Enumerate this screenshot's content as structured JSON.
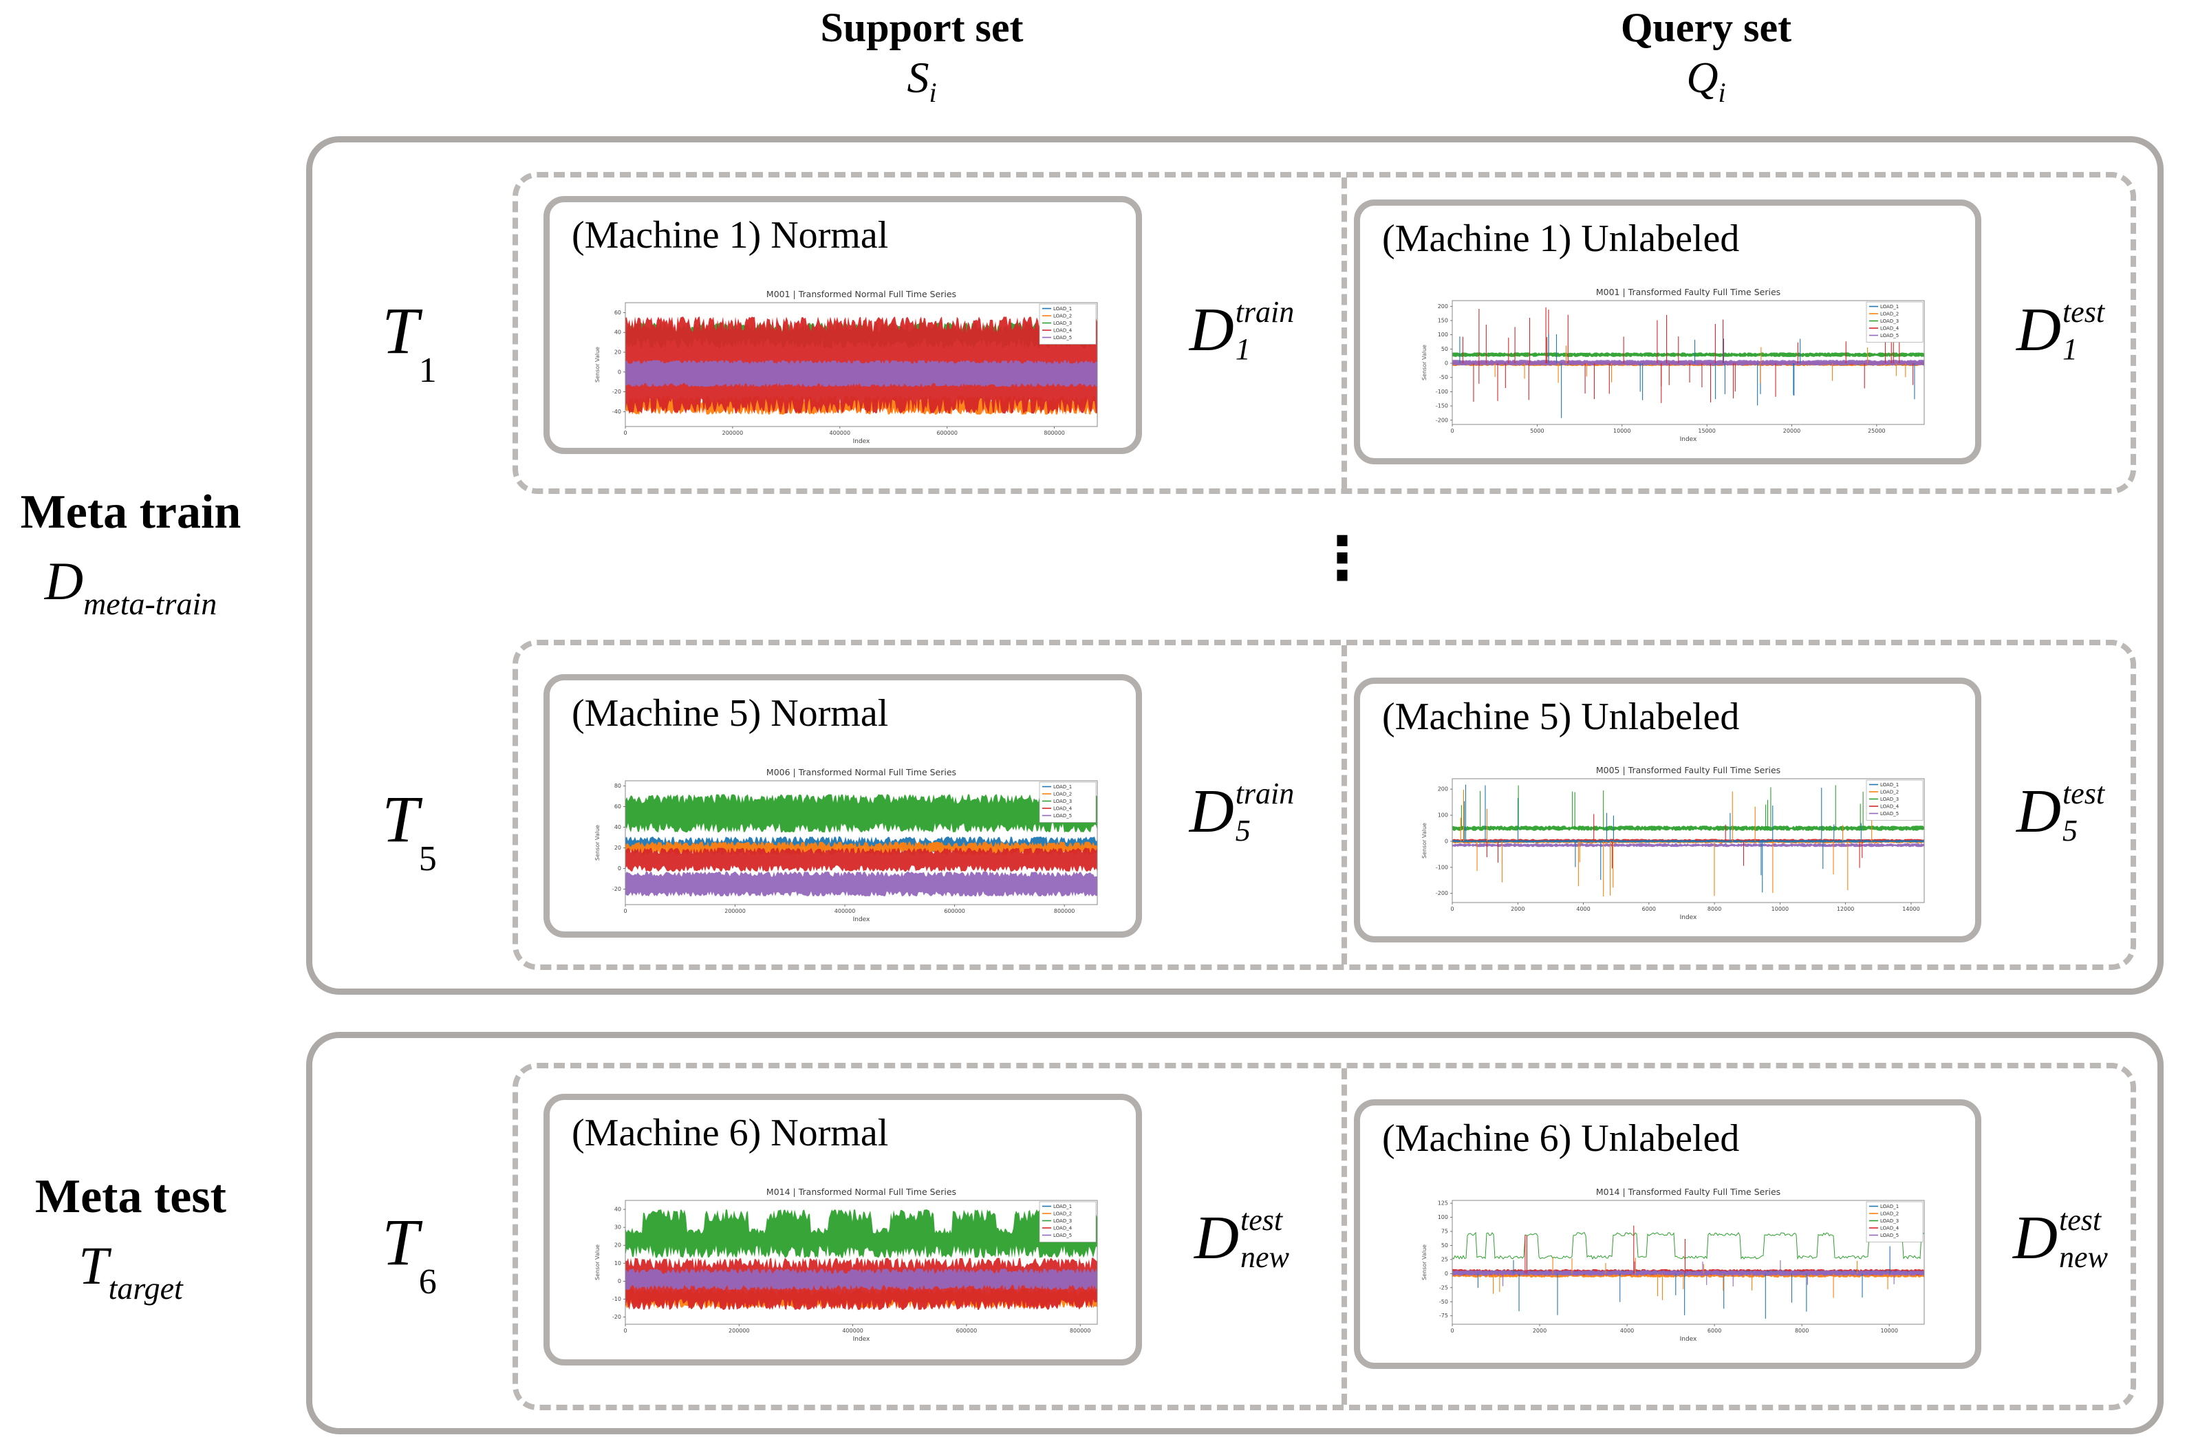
{
  "columns": {
    "support": {
      "title": "Support set",
      "symbol": "S",
      "symbol_sub": "i"
    },
    "query": {
      "title": "Query set",
      "symbol": "Q",
      "symbol_sub": "i"
    }
  },
  "meta_train": {
    "label": "Meta train",
    "symbol": "D",
    "symbol_sub": "meta-train"
  },
  "meta_test": {
    "label": "Meta test",
    "symbol": "T",
    "symbol_sub": "target"
  },
  "ellipsis": "⋮",
  "rows": [
    {
      "task_symbol": "T",
      "task_sub": "1",
      "support": {
        "title": "(Machine 1) Normal",
        "d_letter": "D",
        "d_sup": "train",
        "d_sub": "1"
      },
      "query": {
        "title": "(Machine 1) Unlabeled",
        "d_letter": "D",
        "d_sup": "test",
        "d_sub": "1"
      }
    },
    {
      "task_symbol": "T",
      "task_sub": "5",
      "support": {
        "title": "(Machine 5) Normal",
        "d_letter": "D",
        "d_sup": "train",
        "d_sub": "5"
      },
      "query": {
        "title": "(Machine 5) Unlabeled",
        "d_letter": "D",
        "d_sup": "test",
        "d_sub": "5"
      }
    },
    {
      "task_symbol": "T",
      "task_sub": "6",
      "support": {
        "title": "(Machine 6) Normal",
        "d_letter": "D",
        "d_sup": "test",
        "d_sub": "new"
      },
      "query": {
        "title": "(Machine 6) Unlabeled",
        "d_letter": "D",
        "d_sup": "test",
        "d_sub": "new"
      }
    }
  ],
  "chart_data": [
    {
      "type": "line",
      "panel": "meta-train support machine 1",
      "title": "M001 | Transformed Normal Full Time Series",
      "xlabel": "Index",
      "ylabel": "Sensor Value",
      "xlim": [
        0,
        880000
      ],
      "ylim": [
        -55,
        70
      ],
      "xticks": [
        0,
        200000,
        400000,
        600000,
        800000
      ],
      "yticks": [
        -40,
        -20,
        0,
        20,
        40,
        60
      ],
      "legend": [
        "LOAD_1",
        "LOAD_2",
        "LOAD_3",
        "LOAD_4",
        "LOAD_5"
      ],
      "legend_colors": [
        "#1f77b4",
        "#ff7f0e",
        "#2ca02c",
        "#d62728",
        "#9467bd"
      ],
      "series": [
        {
          "name": "LOAD_3",
          "color": "#2ca02c",
          "type": "band",
          "low": 24,
          "high": 50,
          "jitter": 10
        },
        {
          "name": "LOAD_2",
          "color": "#ff7f0e",
          "type": "band",
          "low": -43,
          "high": -24,
          "jitter": 8
        },
        {
          "name": "LOAD_4",
          "color": "#d62728",
          "type": "band",
          "low": -42,
          "high": 56,
          "jitter": 16
        },
        {
          "name": "LOAD_5",
          "color": "#9467bd",
          "type": "band",
          "low": -15,
          "high": 12,
          "jitter": 4
        }
      ]
    },
    {
      "type": "line",
      "panel": "meta-train query machine 1",
      "title": "M001 | Transformed Faulty Full Time Series",
      "xlabel": "Index",
      "ylabel": "Sensor Value",
      "xlim": [
        0,
        27800
      ],
      "ylim": [
        -215,
        220
      ],
      "xticks": [
        0,
        5000,
        10000,
        15000,
        20000,
        25000
      ],
      "yticks": [
        -200,
        -150,
        -100,
        -50,
        0,
        50,
        100,
        150,
        200
      ],
      "legend": [
        "LOAD_1",
        "LOAD_2",
        "LOAD_3",
        "LOAD_4",
        "LOAD_5"
      ],
      "legend_colors": [
        "#1f77b4",
        "#ff7f0e",
        "#2ca02c",
        "#d62728",
        "#9467bd"
      ],
      "series": [
        {
          "name": "LOAD_3",
          "color": "#2ca02c",
          "type": "band",
          "low": 22,
          "high": 38,
          "jitter": 5
        },
        {
          "name": "LOAD_2",
          "color": "#ff7f0e",
          "type": "band",
          "low": -10,
          "high": 5,
          "jitter": 4
        },
        {
          "name": "LOAD_1",
          "color": "#1f77b4",
          "type": "band",
          "low": -6,
          "high": 6,
          "jitter": 3
        },
        {
          "name": "LOAD_4",
          "color": "#d62728",
          "type": "band",
          "low": -6,
          "high": 7,
          "jitter": 4
        },
        {
          "name": "LOAD_5",
          "color": "#9467bd",
          "type": "band",
          "low": -8,
          "high": 12,
          "jitter": 5
        },
        {
          "name": "LOAD_4",
          "color": "#d62728",
          "type": "spikes",
          "n": 42,
          "base": 0,
          "up_prob": 0.62,
          "up": [
            70,
            205
          ],
          "down": [
            60,
            140
          ]
        },
        {
          "name": "LOAD_1",
          "color": "#1f77b4",
          "type": "spikes",
          "n": 16,
          "base": 0,
          "up_prob": 0.3,
          "up": [
            80,
            107
          ],
          "down": [
            90,
            195
          ]
        },
        {
          "name": "LOAD_2",
          "color": "#ff7f0e",
          "type": "spikes",
          "n": 12,
          "base": 0,
          "up_prob": 0.5,
          "up": [
            40,
            65
          ],
          "down": [
            40,
            70
          ]
        }
      ]
    },
    {
      "type": "line",
      "panel": "meta-train support machine 5",
      "title": "M006 | Transformed Normal Full Time Series",
      "xlabel": "Index",
      "ylabel": "Sensor Value",
      "xlim": [
        0,
        860000
      ],
      "ylim": [
        -35,
        85
      ],
      "xticks": [
        0,
        200000,
        400000,
        600000,
        800000
      ],
      "yticks": [
        -20,
        0,
        20,
        40,
        60,
        80
      ],
      "legend": [
        "LOAD_1",
        "LOAD_2",
        "LOAD_3",
        "LOAD_4",
        "LOAD_5"
      ],
      "legend_colors": [
        "#1f77b4",
        "#ff7f0e",
        "#2ca02c",
        "#d62728",
        "#9467bd"
      ],
      "series": [
        {
          "name": "LOAD_3",
          "color": "#2ca02c",
          "type": "band",
          "low": 35,
          "high": 72,
          "jitter": 9
        },
        {
          "name": "LOAD_1",
          "color": "#1f77b4",
          "type": "band",
          "low": 15,
          "high": 31,
          "jitter": 7
        },
        {
          "name": "LOAD_2",
          "color": "#ff7f0e",
          "type": "band",
          "low": 13,
          "high": 26,
          "jitter": 5
        },
        {
          "name": "LOAD_4",
          "color": "#d62728",
          "type": "band",
          "low": -3,
          "high": 20,
          "jitter": 6
        },
        {
          "name": "LOAD_5",
          "color": "#9467bd",
          "type": "band",
          "low": -27,
          "high": -3,
          "jitter": 5
        }
      ]
    },
    {
      "type": "line",
      "panel": "meta-train query machine 5",
      "title": "M005 | Transformed Faulty Full Time Series",
      "xlabel": "Index",
      "ylabel": "Sensor Value",
      "xlim": [
        0,
        14400
      ],
      "ylim": [
        -235,
        240
      ],
      "xticks": [
        0,
        2000,
        4000,
        6000,
        8000,
        10000,
        12000,
        14000
      ],
      "yticks": [
        -200,
        -100,
        0,
        100,
        200
      ],
      "legend": [
        "LOAD_1",
        "LOAD_2",
        "LOAD_3",
        "LOAD_4",
        "LOAD_5"
      ],
      "legend_colors": [
        "#1f77b4",
        "#ff7f0e",
        "#2ca02c",
        "#d62728",
        "#9467bd"
      ],
      "series": [
        {
          "name": "LOAD_3",
          "color": "#2ca02c",
          "type": "band",
          "low": 40,
          "high": 60,
          "jitter": 7
        },
        {
          "name": "LOAD_2",
          "color": "#ff7f0e",
          "type": "band",
          "low": -8,
          "high": 5,
          "jitter": 4
        },
        {
          "name": "LOAD_4",
          "color": "#d62728",
          "type": "band",
          "low": -2,
          "high": 9,
          "jitter": 4
        },
        {
          "name": "LOAD_1",
          "color": "#1f77b4",
          "type": "band",
          "low": -5,
          "high": 5,
          "jitter": 3
        },
        {
          "name": "LOAD_5",
          "color": "#9467bd",
          "type": "band",
          "low": -22,
          "high": -8,
          "jitter": 5
        },
        {
          "name": "LOAD_1",
          "color": "#1f77b4",
          "type": "spikes",
          "n": 16,
          "base": 0,
          "up_prob": 0.45,
          "up": [
            60,
            225
          ],
          "down": [
            80,
            210
          ],
          "clusters": [
            [
              100,
              2100
            ],
            [
              3600,
              5000
            ],
            [
              7900,
              9900
            ],
            [
              11000,
              13100
            ]
          ]
        },
        {
          "name": "LOAD_2",
          "color": "#ff7f0e",
          "type": "spikes",
          "n": 18,
          "base": 0,
          "up_prob": 0.4,
          "up": [
            60,
            200
          ],
          "down": [
            70,
            215
          ],
          "clusters": [
            [
              100,
              2100
            ],
            [
              3600,
              5000
            ],
            [
              7900,
              9900
            ],
            [
              11000,
              13100
            ]
          ]
        },
        {
          "name": "LOAD_3",
          "color": "#2ca02c",
          "type": "spikes",
          "n": 12,
          "base": 50,
          "up_prob": 0.8,
          "up": [
            80,
            190
          ],
          "down": [
            60,
            120
          ],
          "clusters": [
            [
              100,
              2100
            ],
            [
              3600,
              5000
            ],
            [
              7900,
              9900
            ],
            [
              11000,
              13100
            ]
          ]
        },
        {
          "name": "LOAD_4",
          "color": "#d62728",
          "type": "spikes",
          "n": 8,
          "base": 0,
          "up_prob": 0.5,
          "up": [
            60,
            130
          ],
          "down": [
            60,
            120
          ],
          "clusters": [
            [
              100,
              2100
            ],
            [
              3600,
              5000
            ],
            [
              7900,
              9900
            ],
            [
              11000,
              13100
            ]
          ]
        }
      ]
    },
    {
      "type": "line",
      "panel": "meta-test support machine 6",
      "title": "M014 | Transformed Normal Full Time Series",
      "xlabel": "Index",
      "ylabel": "Sensor Value",
      "xlim": [
        0,
        830000
      ],
      "ylim": [
        -24,
        45
      ],
      "xticks": [
        0,
        200000,
        400000,
        600000,
        800000
      ],
      "yticks": [
        -20,
        -10,
        0,
        10,
        20,
        30,
        40
      ],
      "legend": [
        "LOAD_1",
        "LOAD_2",
        "LOAD_3",
        "LOAD_4",
        "LOAD_5"
      ],
      "legend_colors": [
        "#1f77b4",
        "#ff7f0e",
        "#2ca02c",
        "#d62728",
        "#9467bd"
      ],
      "series": [
        {
          "name": "LOAD_3",
          "color": "#2ca02c",
          "type": "band",
          "low": 13,
          "high": 40,
          "jitter": 7,
          "notch": {
            "p": 45,
            "w": 13,
            "high": 30
          }
        },
        {
          "name": "LOAD_2",
          "color": "#ff7f0e",
          "type": "band",
          "low": -15,
          "high": -4,
          "jitter": 4
        },
        {
          "name": "LOAD_4",
          "color": "#d62728",
          "type": "band",
          "low": -16,
          "high": 13,
          "jitter": 6
        },
        {
          "name": "LOAD_5",
          "color": "#9467bd",
          "type": "band",
          "low": -5,
          "high": 7,
          "jitter": 3
        }
      ]
    },
    {
      "type": "line",
      "panel": "meta-test query machine 6",
      "title": "M014 | Transformed Faulty Full Time Series",
      "xlabel": "Index",
      "ylabel": "Sensor Value",
      "xlim": [
        0,
        10800
      ],
      "ylim": [
        -90,
        130
      ],
      "xticks": [
        0,
        2000,
        4000,
        6000,
        8000,
        10000
      ],
      "yticks": [
        -75,
        -50,
        -25,
        0,
        25,
        50,
        75,
        100,
        125
      ],
      "legend": [
        "LOAD_1",
        "LOAD_2",
        "LOAD_3",
        "LOAD_4",
        "LOAD_5"
      ],
      "legend_colors": [
        "#1f77b4",
        "#ff7f0e",
        "#2ca02c",
        "#d62728",
        "#9467bd"
      ],
      "series": [
        {
          "name": "LOAD_2",
          "color": "#ff7f0e",
          "type": "band",
          "low": -7,
          "high": 4,
          "jitter": 3
        },
        {
          "name": "LOAD_4",
          "color": "#d62728",
          "type": "band",
          "low": -3,
          "high": 8,
          "jitter": 3
        },
        {
          "name": "LOAD_1",
          "color": "#1f77b4",
          "type": "band",
          "low": -2,
          "high": 5,
          "jitter": 2
        },
        {
          "name": "LOAD_5",
          "color": "#9467bd",
          "type": "band",
          "low": -4,
          "high": 6,
          "jitter": 3
        },
        {
          "name": "LOAD_3",
          "color": "#2ca02c",
          "type": "square",
          "low": 29,
          "high": 70,
          "jitter": 3,
          "seg": [
            5,
            25
          ]
        },
        {
          "name": "LOAD_1",
          "color": "#1f77b4",
          "type": "spikes",
          "n": 13,
          "base": 0,
          "up_prob": 0.08,
          "up": [
            20,
            60
          ],
          "down": [
            25,
            82
          ]
        },
        {
          "name": "LOAD_2",
          "color": "#ff7f0e",
          "type": "spikes",
          "n": 15,
          "base": 0,
          "up_prob": 0.25,
          "up": [
            15,
            30
          ],
          "down": [
            18,
            48
          ]
        },
        {
          "name": "LOAD_5",
          "color": "#9467bd",
          "type": "spikes",
          "n": 8,
          "base": 0,
          "up_prob": 0.5,
          "up": [
            18,
            28
          ],
          "down": [
            15,
            25
          ]
        },
        {
          "name": "LOAD_4",
          "color": "#d62728",
          "type": "spikes",
          "n": 4,
          "base": 0,
          "up_prob": 0.75,
          "up": [
            15,
            118
          ],
          "down": [
            15,
            25
          ]
        }
      ]
    }
  ]
}
